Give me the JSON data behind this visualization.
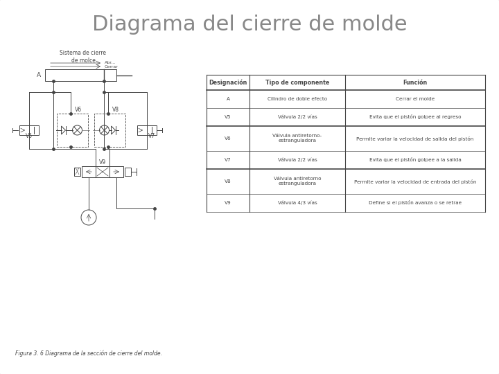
{
  "title": "Diagrama del cierre de molde",
  "title_fontsize": 22,
  "title_color": "#888888",
  "bg_color": "#ffffff",
  "border_color": "#cccccc",
  "diagram_label": "Sistema de cierre\nde molce",
  "caption": "Figura 3. 6 Diagrama de la sección de cierre del molde.",
  "table_headers": [
    "Designación",
    "Tipo de componente",
    "Función"
  ],
  "table_rows": [
    [
      "A",
      "Cilindro de doble efecto",
      "Cerrar el molde"
    ],
    [
      "V5",
      "Válvula 2/2 vías",
      "Evita que el pistón golpee al regreso"
    ],
    [
      "V6",
      "Válvula antiretorno-\nestranguladora",
      "Permite variar la velocidad de salida del pistón"
    ],
    [
      "V7",
      "Válvula 2/2 vías",
      "Evita que el pistón golpee a la salida"
    ],
    [
      "V8",
      "Válvula antiretorno\nestranguladora",
      "Permite variar la velocidad de entrada del pistón"
    ],
    [
      "V9",
      "Válvula 4/3 vías",
      "Define si el pistón avanza o se retrae"
    ]
  ],
  "line_color": "#444444",
  "fill_color": "#ffffff"
}
